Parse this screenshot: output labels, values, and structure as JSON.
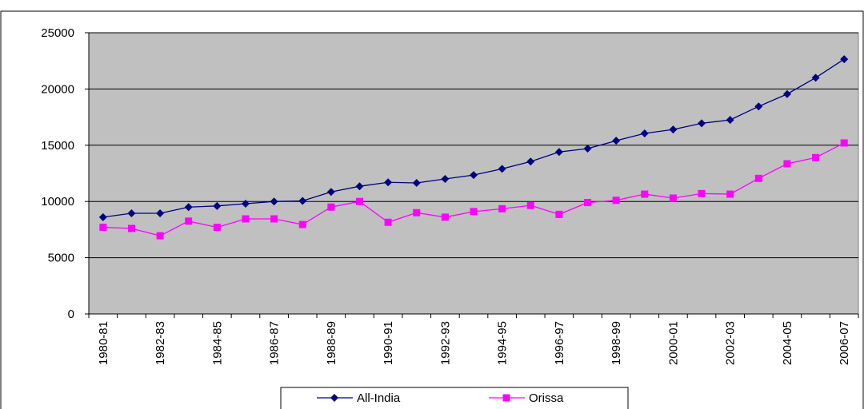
{
  "chart_data": {
    "type": "line",
    "categories": [
      "1980-81",
      null,
      "1982-83",
      null,
      "1984-85",
      null,
      "1986-87",
      null,
      "1988-89",
      null,
      "1990-91",
      null,
      "1992-93",
      null,
      "1994-95",
      null,
      "1996-97",
      null,
      "1998-99",
      null,
      "2000-01",
      null,
      "2002-03",
      null,
      "2004-05",
      null,
      "2006-07"
    ],
    "series": [
      {
        "name": "All-India",
        "color": "#000080",
        "marker": "diamond",
        "values": [
          8600,
          8950,
          8950,
          9500,
          9600,
          9800,
          10000,
          10050,
          10850,
          11350,
          11700,
          11650,
          12000,
          12350,
          12900,
          13550,
          14400,
          14700,
          15400,
          16050,
          16400,
          16950,
          17250,
          18450,
          19550,
          21000,
          22650
        ]
      },
      {
        "name": "Orissa",
        "color": "#FF00FF",
        "marker": "square",
        "values": [
          7700,
          7600,
          6950,
          8250,
          7700,
          8450,
          8450,
          7950,
          9500,
          10000,
          8150,
          9000,
          8600,
          9100,
          9350,
          9650,
          8850,
          9900,
          10100,
          10650,
          10300,
          10700,
          10650,
          12050,
          13350,
          13900,
          15200
        ]
      }
    ],
    "ylim": [
      0,
      25000
    ],
    "yticks": [
      0,
      5000,
      10000,
      15000,
      20000,
      25000
    ],
    "grid": true,
    "legend": "bottom",
    "plot_background": "#C0C0C0"
  }
}
